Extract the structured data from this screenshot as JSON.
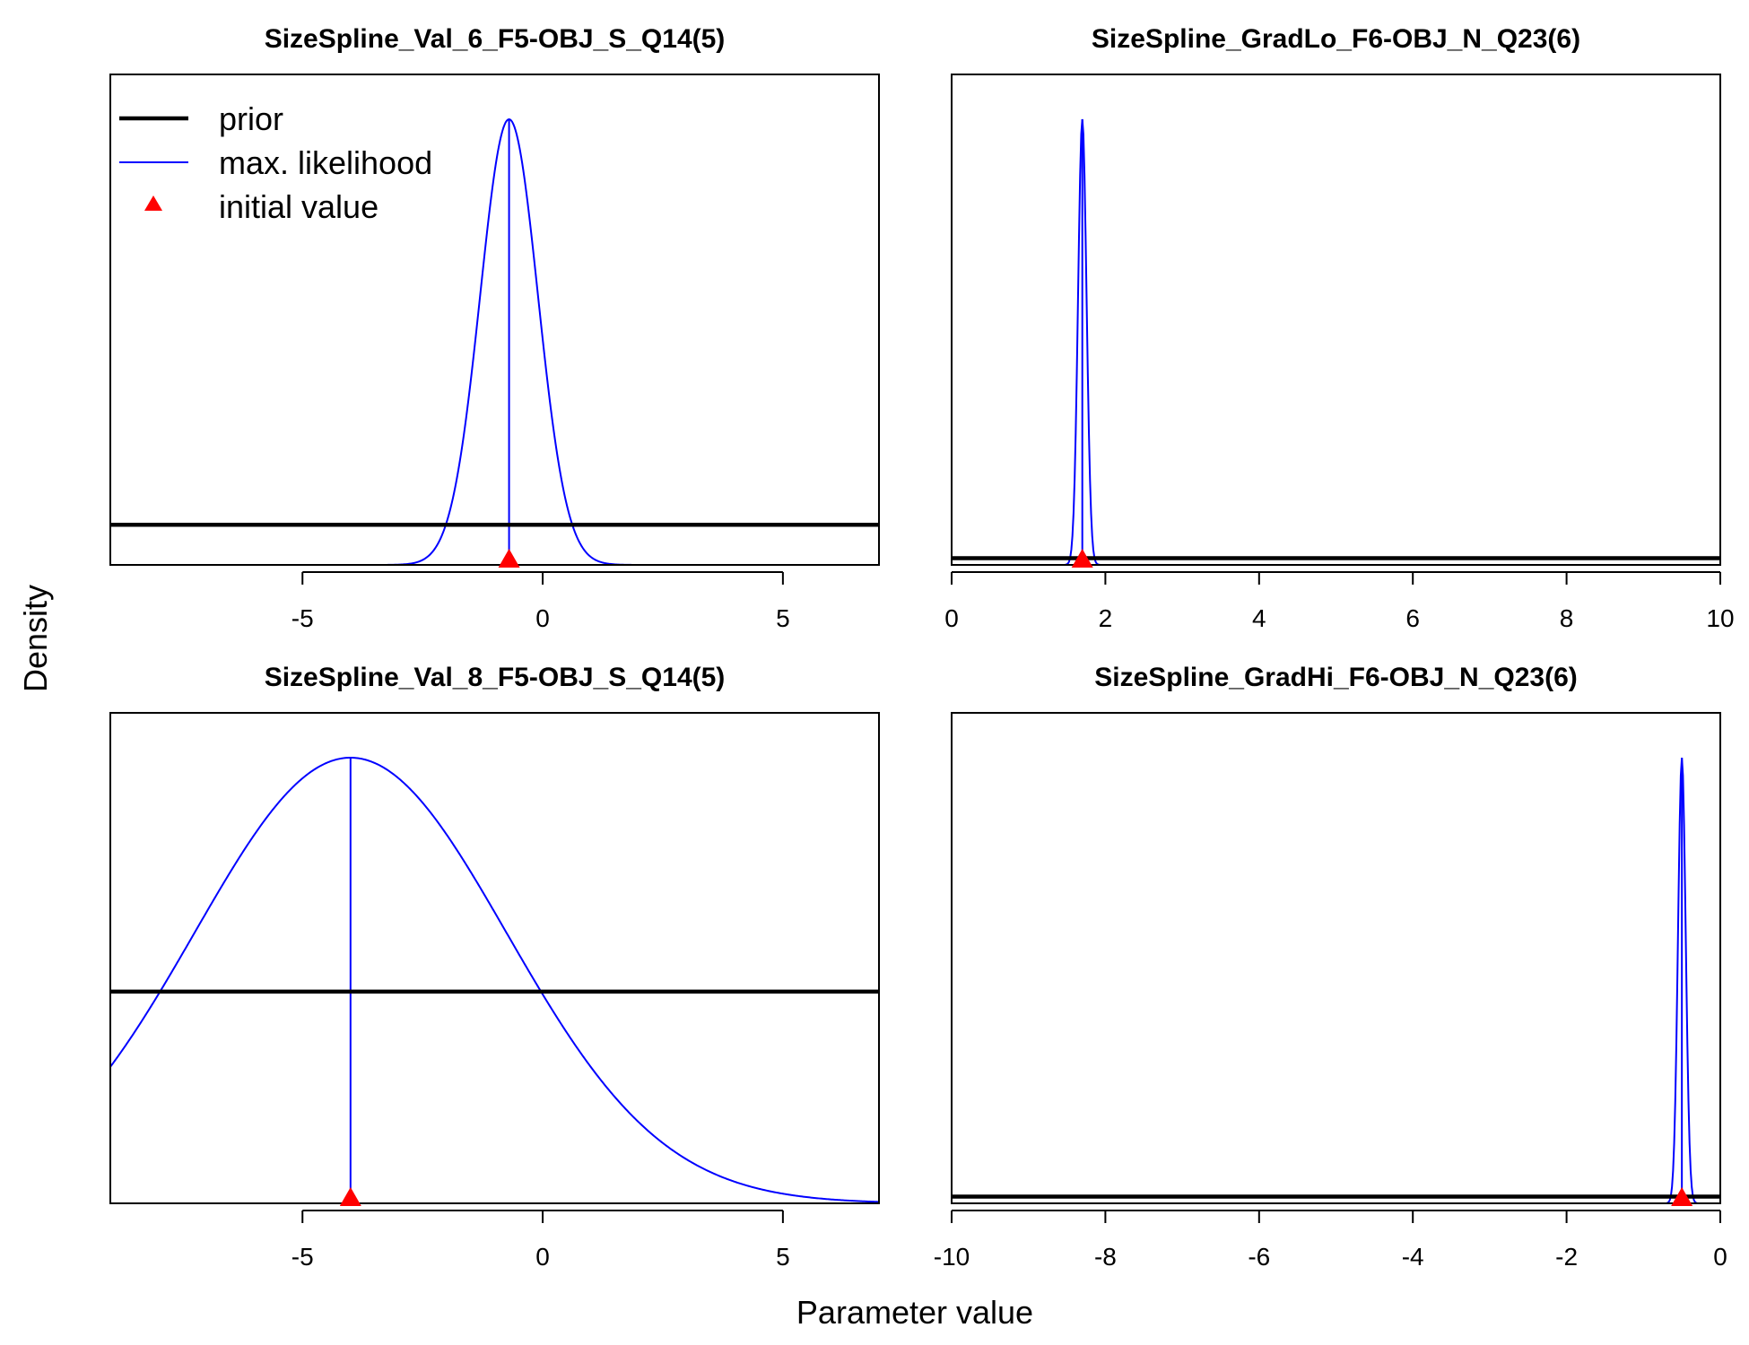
{
  "figure": {
    "xlabel": "Parameter value",
    "ylabel": "Density",
    "colors": {
      "prior": "#000000",
      "mle": "#0000ff",
      "initial": "#ff0000"
    }
  },
  "legend": {
    "placement": "top-left",
    "entries": [
      "prior",
      "max. likelihood",
      "initial value"
    ]
  },
  "chart_data": [
    {
      "type": "line",
      "title": "SizeSpline_Val_6_F5-OBJ_S_Q14(5)",
      "xlim": [
        -9,
        7
      ],
      "xticks": [
        -5,
        0,
        5
      ],
      "tick_labels": [
        "-5",
        "0",
        "5"
      ],
      "prior_level": 0.09,
      "mle": {
        "mean": -0.7,
        "sd": 0.6
      },
      "initial_value": -0.7,
      "x_axis_at_left_edge": false
    },
    {
      "type": "line",
      "title": "SizeSpline_GradLo_F6-OBJ_N_Q23(6)",
      "xlim": [
        0,
        10
      ],
      "xticks": [
        0,
        2,
        4,
        6,
        8,
        10
      ],
      "tick_labels": [
        "0",
        "2",
        "4",
        "6",
        "8",
        "10"
      ],
      "prior_level": 0.015,
      "mle": {
        "mean": 1.7,
        "sd": 0.055
      },
      "initial_value": 1.7,
      "x_axis_at_left_edge": true
    },
    {
      "type": "line",
      "title": "SizeSpline_Val_8_F5-OBJ_S_Q14(5)",
      "xlim": [
        -9,
        7
      ],
      "xticks": [
        -5,
        0,
        5
      ],
      "tick_labels": [
        "-5",
        "0",
        "5"
      ],
      "prior_level": 0.475,
      "mle": {
        "mean": -4.0,
        "sd": 3.25
      },
      "initial_value": -4.0,
      "x_axis_at_left_edge": false
    },
    {
      "type": "line",
      "title": "SizeSpline_GradHi_F6-OBJ_N_Q23(6)",
      "xlim": [
        -10,
        0
      ],
      "xticks": [
        -10,
        -8,
        -6,
        -4,
        -2,
        0
      ],
      "tick_labels": [
        "-10",
        "-8",
        "-6",
        "-4",
        "-2",
        "0"
      ],
      "prior_level": 0.015,
      "mle": {
        "mean": -0.5,
        "sd": 0.05
      },
      "initial_value": -0.5,
      "x_axis_at_left_edge": true
    }
  ]
}
